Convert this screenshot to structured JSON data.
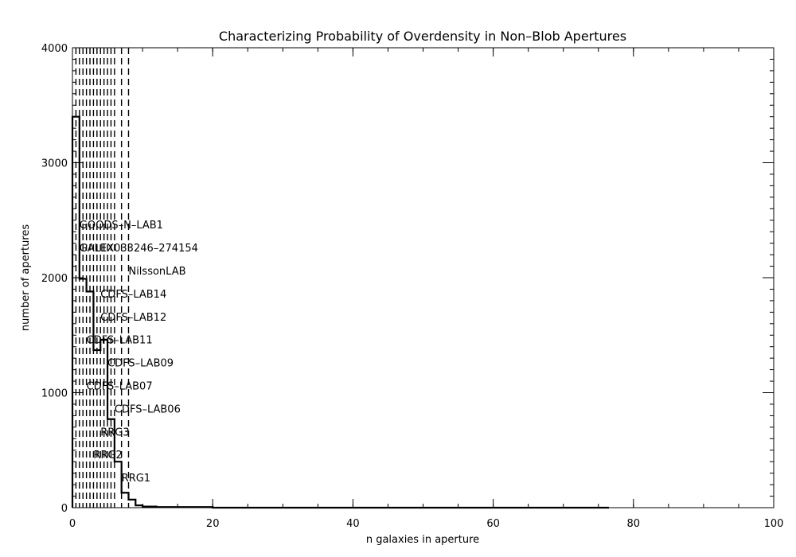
{
  "chart_data": {
    "type": "bar",
    "title": "Characterizing Probability of Overdensity in Non–Blob Apertures",
    "xlabel": "n galaxies in aperture",
    "ylabel": "number of apertures",
    "xlim": [
      0,
      100
    ],
    "ylim": [
      0,
      4000
    ],
    "x_major_ticks": [
      0,
      20,
      40,
      60,
      80,
      100
    ],
    "x_minor_step": 5,
    "y_major_ticks": [
      0,
      1000,
      2000,
      3000,
      4000
    ],
    "y_minor_step": 100,
    "histogram": {
      "bin_width": 1,
      "bin_edges_start": 0,
      "counts": [
        3400,
        1990,
        1880,
        1370,
        1460,
        770,
        400,
        130,
        70,
        20,
        10,
        10,
        5,
        5,
        5,
        5,
        5,
        5,
        5,
        5
      ],
      "tail_end_x": 76.5
    },
    "markers": [
      {
        "label": "RRG1",
        "x": 7.0,
        "y": 200
      },
      {
        "label": "RRG2",
        "x": 3.0,
        "y": 400
      },
      {
        "label": "RRG3",
        "x": 4.0,
        "y": 600
      },
      {
        "label": "CDFS–LAB06",
        "x": 6.0,
        "y": 800
      },
      {
        "label": "CDFS–LAB07",
        "x": 2.0,
        "y": 1000
      },
      {
        "label": "CDFS–LAB09",
        "x": 5.0,
        "y": 1200
      },
      {
        "label": "CDFS–LAB11",
        "x": 2.0,
        "y": 1400
      },
      {
        "label": "CDFS–LAB12",
        "x": 4.0,
        "y": 1600
      },
      {
        "label": "CDFS–LAB14",
        "x": 4.0,
        "y": 1800
      },
      {
        "label": "NilssonLAB",
        "x": 8.0,
        "y": 2000
      },
      {
        "label": "GALEX033246–274154",
        "x": 1.0,
        "y": 2200
      },
      {
        "label": "GOODS–N–LAB1",
        "x": 1.0,
        "y": 2400
      }
    ],
    "marker_lines_x": [
      0.5,
      1,
      1.5,
      2,
      2.5,
      3,
      3.5,
      4,
      4.5,
      5,
      5.5,
      6,
      7,
      8
    ],
    "grid": false
  }
}
